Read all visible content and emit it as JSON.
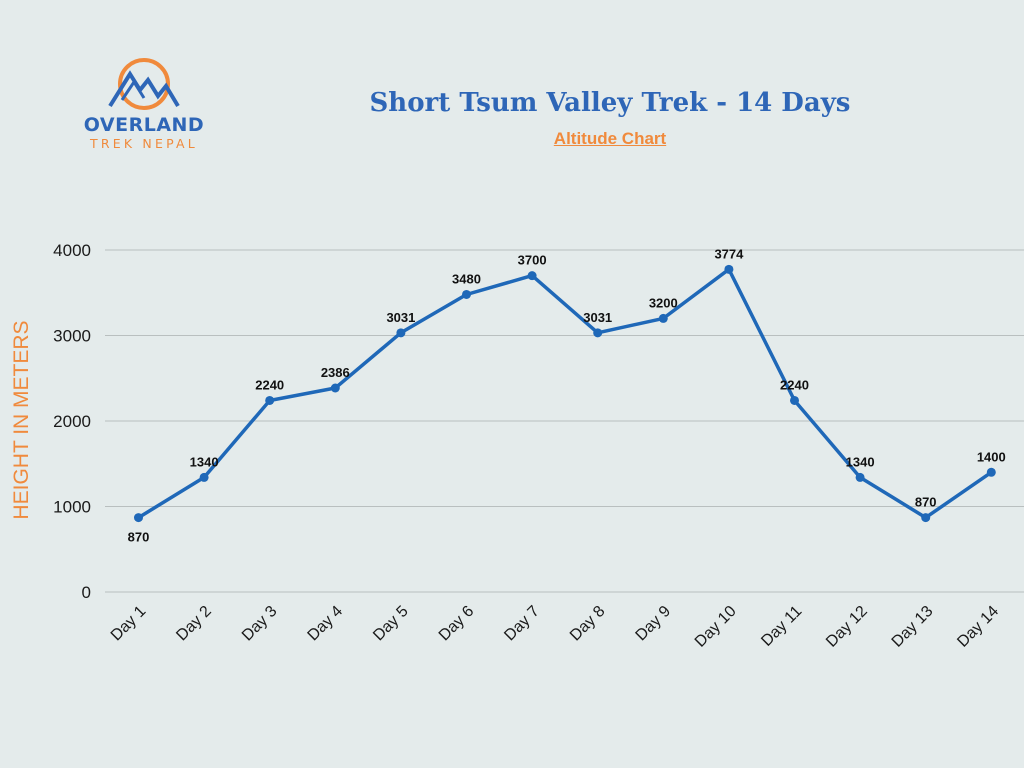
{
  "brand": {
    "name": "OVERLAND",
    "tagline": "TREK NEPAL"
  },
  "colors": {
    "background": "#e4ebeb",
    "primary_blue": "#2e66b7",
    "accent_orange": "#f08a3c",
    "line": "#1f68b8",
    "grid": "#b9bfbf"
  },
  "chart_data": {
    "type": "line",
    "title": "Short Tsum Valley Trek - 14 Days",
    "subtitle": "Altitude Chart",
    "xlabel": "",
    "ylabel": "HEIGHT IN METERS",
    "categories": [
      "Day 1",
      "Day 2",
      "Day 3",
      "Day 4",
      "Day 5",
      "Day 6",
      "Day 7",
      "Day 8",
      "Day 9",
      "Day 10",
      "Day 11",
      "Day 12",
      "Day 13",
      "Day 14"
    ],
    "values": [
      870,
      1340,
      2240,
      2386,
      3031,
      3480,
      3700,
      3031,
      3200,
      3774,
      2240,
      1340,
      870,
      1400
    ],
    "ylim": [
      0,
      4000
    ],
    "yticks": [
      0,
      1000,
      2000,
      3000,
      4000
    ],
    "grid": true,
    "data_labels": true
  }
}
